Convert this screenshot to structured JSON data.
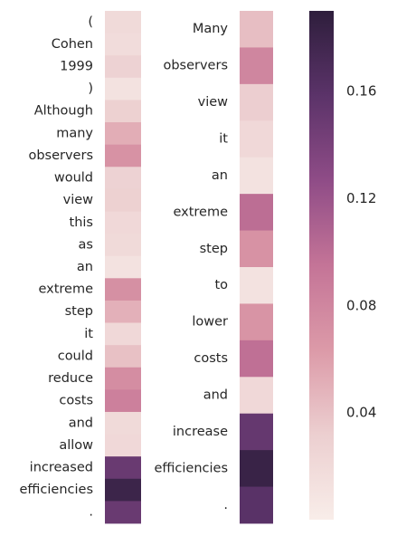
{
  "chart_data": [
    {
      "type": "heatmap",
      "tokens": [
        "(",
        "Cohen",
        "1999",
        ")",
        "Although",
        "many",
        "observers",
        "would",
        "view",
        "this",
        "as",
        "an",
        "extreme",
        "step",
        "it",
        "could",
        "reduce",
        "costs",
        "and",
        "allow",
        "increased",
        "efficiencies",
        "."
      ],
      "values": [
        0.02,
        0.018,
        0.028,
        0.012,
        0.03,
        0.052,
        0.07,
        0.028,
        0.03,
        0.022,
        0.02,
        0.012,
        0.072,
        0.05,
        0.022,
        0.04,
        0.074,
        0.085,
        0.02,
        0.022,
        0.15,
        0.18,
        0.15
      ]
    },
    {
      "type": "heatmap",
      "tokens": [
        "Many",
        "observers",
        "view",
        "it",
        "an",
        "extreme",
        "step",
        "to",
        "lower",
        "costs",
        "and",
        "increase",
        "efficiencies",
        "."
      ],
      "values": [
        0.042,
        0.08,
        0.032,
        0.022,
        0.012,
        0.1,
        0.07,
        0.012,
        0.068,
        0.098,
        0.022,
        0.152,
        0.182,
        0.16
      ]
    }
  ],
  "colorbar": {
    "range": [
      0.0,
      0.19
    ],
    "ticks": [
      0.04,
      0.08,
      0.12,
      0.16
    ],
    "tick_labels": [
      "0.04",
      "0.08",
      "0.12",
      "0.16"
    ]
  },
  "colors": {
    "scale": [
      "#f8ede9",
      "#eccfd0",
      "#dc9aa8",
      "#c47497",
      "#8f4c87",
      "#5b3369",
      "#2e1e3c"
    ],
    "label_text": "#262626"
  }
}
